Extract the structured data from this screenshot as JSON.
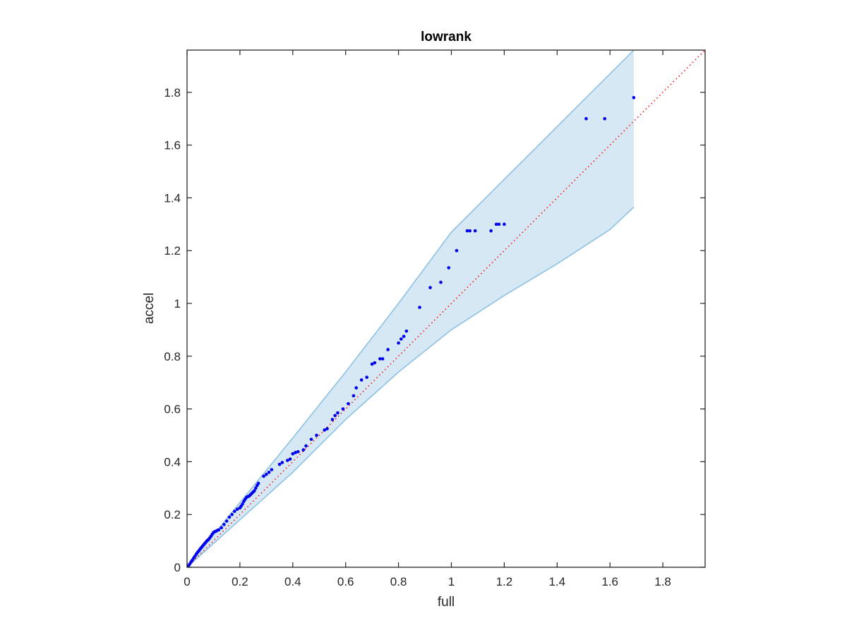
{
  "chart_data": {
    "type": "scatter",
    "title": "lowrank",
    "xlabel": "full",
    "ylabel": "accel",
    "xlim": [
      0,
      1.96
    ],
    "ylim": [
      0,
      1.96
    ],
    "xticks": [
      0,
      0.2,
      0.4,
      0.6,
      0.8,
      1,
      1.2,
      1.4,
      1.6,
      1.8
    ],
    "xtick_labels": [
      "0",
      "0.2",
      "0.4",
      "0.6",
      "0.8",
      "1",
      "1.2",
      "1.4",
      "1.6",
      "1.8"
    ],
    "yticks": [
      0,
      0.2,
      0.4,
      0.6,
      0.8,
      1,
      1.2,
      1.4,
      1.6,
      1.8
    ],
    "ytick_labels": [
      "0",
      "0.2",
      "0.4",
      "0.6",
      "0.8",
      "1",
      "1.2",
      "1.4",
      "1.6",
      "1.8"
    ],
    "grid": false,
    "box": true,
    "points": {
      "color": "#0000ee",
      "x": [
        0.005,
        0.01,
        0.015,
        0.02,
        0.025,
        0.03,
        0.035,
        0.04,
        0.045,
        0.05,
        0.055,
        0.06,
        0.065,
        0.07,
        0.075,
        0.08,
        0.085,
        0.09,
        0.095,
        0.1,
        0.105,
        0.11,
        0.115,
        0.12,
        0.13,
        0.14,
        0.15,
        0.16,
        0.17,
        0.18,
        0.19,
        0.2,
        0.205,
        0.21,
        0.215,
        0.22,
        0.225,
        0.23,
        0.235,
        0.24,
        0.245,
        0.25,
        0.255,
        0.26,
        0.265,
        0.27,
        0.29,
        0.3,
        0.31,
        0.32,
        0.35,
        0.36,
        0.38,
        0.39,
        0.4,
        0.41,
        0.42,
        0.44,
        0.45,
        0.47,
        0.49,
        0.52,
        0.53,
        0.55,
        0.56,
        0.57,
        0.59,
        0.61,
        0.63,
        0.64,
        0.66,
        0.68,
        0.7,
        0.71,
        0.73,
        0.74,
        0.76,
        0.8,
        0.81,
        0.82,
        0.83,
        0.88,
        0.92,
        0.96,
        0.99,
        1.02,
        1.06,
        1.07,
        1.09,
        1.15,
        1.17,
        1.18,
        1.2,
        1.51,
        1.58,
        1.69
      ],
      "y": [
        0.005,
        0.012,
        0.02,
        0.027,
        0.035,
        0.042,
        0.05,
        0.057,
        0.063,
        0.07,
        0.076,
        0.082,
        0.088,
        0.094,
        0.1,
        0.104,
        0.11,
        0.117,
        0.125,
        0.132,
        0.135,
        0.137,
        0.14,
        0.142,
        0.15,
        0.162,
        0.175,
        0.19,
        0.2,
        0.212,
        0.22,
        0.225,
        0.232,
        0.24,
        0.25,
        0.258,
        0.265,
        0.268,
        0.27,
        0.275,
        0.28,
        0.285,
        0.29,
        0.3,
        0.31,
        0.318,
        0.345,
        0.352,
        0.36,
        0.37,
        0.39,
        0.397,
        0.405,
        0.41,
        0.43,
        0.435,
        0.438,
        0.445,
        0.46,
        0.485,
        0.5,
        0.52,
        0.525,
        0.56,
        0.575,
        0.585,
        0.6,
        0.62,
        0.65,
        0.68,
        0.71,
        0.72,
        0.77,
        0.775,
        0.79,
        0.79,
        0.825,
        0.85,
        0.865,
        0.875,
        0.895,
        0.985,
        1.06,
        1.08,
        1.135,
        1.2,
        1.275,
        1.275,
        1.275,
        1.275,
        1.3,
        1.3,
        1.3,
        1.7,
        1.7,
        1.78
      ]
    },
    "reference_line": {
      "style": "dotted",
      "color": "#ff0000",
      "slope": 1,
      "x": [
        0,
        1.96
      ],
      "y": [
        0,
        1.96
      ]
    },
    "band": {
      "fill": "#d6e8f4",
      "edge": "#8ec2e3",
      "x": [
        0,
        0.2,
        0.4,
        0.6,
        0.8,
        1.0,
        1.2,
        1.4,
        1.6,
        1.69
      ],
      "upper": [
        0,
        0.245,
        0.49,
        0.74,
        1.0,
        1.27,
        1.47,
        1.67,
        1.87,
        1.96
      ],
      "lower": [
        0,
        0.18,
        0.36,
        0.56,
        0.74,
        0.9,
        1.03,
        1.15,
        1.28,
        1.365
      ]
    }
  }
}
